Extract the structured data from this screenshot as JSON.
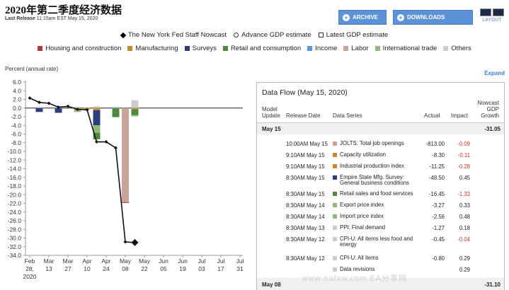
{
  "header": {
    "title": "2020年第二季度经济数据",
    "last_release_label": "Last Release",
    "last_release_value": "11:15am EST May 15, 2020"
  },
  "toolbar": {
    "archive_label": "ARCHIVE",
    "downloads_label": "DOWNLOADS",
    "layout_label": "LAYOUT"
  },
  "legend_top": {
    "nowcast": "The New York Fed Staff Nowcast",
    "advance": "Advance GDP estimate",
    "latest": "Latest GDP estimate"
  },
  "legend_categories": [
    {
      "label": "Housing and construction",
      "color": "#b23a3a"
    },
    {
      "label": "Manufacturing",
      "color": "#c98a2e"
    },
    {
      "label": "Surveys",
      "color": "#2e3d7c"
    },
    {
      "label": "Retail and consumption",
      "color": "#4e8a3e"
    },
    {
      "label": "Income",
      "color": "#5c98d6"
    },
    {
      "label": "Labor",
      "color": "#caa49a"
    },
    {
      "label": "International trade",
      "color": "#8fb87a"
    },
    {
      "label": "Others",
      "color": "#cccccc"
    }
  ],
  "expand_label": "Expand",
  "chart_data": {
    "type": "bar",
    "ylabel": "Percent (annual rate)",
    "ylim": [
      -34,
      6
    ],
    "yticks": [
      6.0,
      4.0,
      2.0,
      0.0,
      -2.0,
      -4.0,
      -6.0,
      -8.0,
      -10.0,
      -12.0,
      -14.0,
      -16.0,
      -18.0,
      -20.0,
      -22.0,
      -24.0,
      -26.0,
      -28.0,
      -30.0,
      -32.0,
      -34.0
    ],
    "categories": [
      [
        "Feb",
        "28,",
        "2020"
      ],
      [
        "Mar",
        "13"
      ],
      [
        "Mar",
        "27"
      ],
      [
        "Apr",
        "10"
      ],
      [
        "Apr",
        "24"
      ],
      [
        "May",
        "08"
      ],
      [
        "May",
        "22"
      ],
      [
        "Jun",
        "05"
      ],
      [
        "Jun",
        "19"
      ],
      [
        "Jul",
        "03"
      ],
      [
        "Jul",
        "17"
      ],
      [
        "Jul",
        "31"
      ]
    ],
    "nowcast": {
      "name": "The New York Fed Staff Nowcast",
      "points": [
        [
          0,
          2.3
        ],
        [
          0.5,
          1.3
        ],
        [
          1.0,
          1.1
        ],
        [
          1.5,
          0.2
        ],
        [
          2.0,
          0.4
        ],
        [
          2.5,
          -0.3
        ],
        [
          3.0,
          -0.4
        ],
        [
          3.5,
          -7.8
        ],
        [
          4.0,
          -7.8
        ],
        [
          4.5,
          -9.2
        ],
        [
          5.0,
          -30.9
        ],
        [
          5.5,
          -31.05
        ]
      ]
    },
    "contributions": [
      {
        "x": 0.5,
        "segments": [
          {
            "cat": 2,
            "v": -0.9
          },
          {
            "cat": 7,
            "v": 0.3
          }
        ]
      },
      {
        "x": 1.5,
        "segments": [
          {
            "cat": 2,
            "v": -1.1
          },
          {
            "cat": 7,
            "v": 0.2
          }
        ]
      },
      {
        "x": 2.5,
        "segments": [
          {
            "cat": 1,
            "v": -0.5
          },
          {
            "cat": 6,
            "v": -0.4
          },
          {
            "cat": 7,
            "v": 0.3
          }
        ]
      },
      {
        "x": 3.0,
        "segments": [
          {
            "cat": 1,
            "v": -0.3
          },
          {
            "cat": 7,
            "v": 0.2
          }
        ]
      },
      {
        "x": 3.5,
        "segments": [
          {
            "cat": 1,
            "v": -0.5
          },
          {
            "cat": 2,
            "v": -3.5
          },
          {
            "cat": 6,
            "v": -1.7
          },
          {
            "cat": 3,
            "v": -1.5
          },
          {
            "cat": 7,
            "v": 0.4
          }
        ]
      },
      {
        "x": 4.5,
        "segments": [
          {
            "cat": 3,
            "v": -2.1
          },
          {
            "cat": 7,
            "v": 0.3
          }
        ]
      },
      {
        "x": 5.0,
        "segments": [
          {
            "cat": 5,
            "v": -21.7
          },
          {
            "cat": 0,
            "v": -0.2
          }
        ]
      },
      {
        "x": 5.5,
        "segments": [
          {
            "cat": 1,
            "v": -0.3
          },
          {
            "cat": 3,
            "v": -1.3
          },
          {
            "cat": 6,
            "v": -0.3
          },
          {
            "cat": 7,
            "v": 1.8
          }
        ]
      }
    ]
  },
  "panel": {
    "title": "Data Flow (May 15, 2020)",
    "headers": {
      "model_update": "Model Update",
      "release_date": "Release Date",
      "data_series": "Data Series",
      "actual": "Actual",
      "impact": "Impact",
      "nowcast": "Nowcast GDP Growth"
    },
    "group1": {
      "date": "May 15",
      "nowcast": "-31.05"
    },
    "rows": [
      {
        "time": "10:00AM May 15",
        "color": "#caa49a",
        "series": "JOLTS: Total job openings",
        "actual": "-813.00",
        "impact": "-0.09",
        "neg": true
      },
      {
        "time": "9:10AM May 15",
        "color": "#c98a2e",
        "series": "Capacity utilization",
        "actual": "-8.30",
        "impact": "-0.11",
        "neg": true
      },
      {
        "time": "9:10AM May 15",
        "color": "#c98a2e",
        "series": "Industrial production index",
        "actual": "-11.25",
        "impact": "-0.28",
        "neg": true
      },
      {
        "time": "8:30AM May 15",
        "color": "#2e3d7c",
        "series": "Empire State Mfg. Survey: General business conditions",
        "actual": "-48.50",
        "impact": "0.45",
        "neg": false
      },
      {
        "time": "8:30AM May 15",
        "color": "#4e8a3e",
        "series": "Retail sales and food services",
        "actual": "-16.45",
        "impact": "-1.33",
        "neg": true
      },
      {
        "time": "8:30AM May 14",
        "color": "#8fb87a",
        "series": "Export price index",
        "actual": "-3.27",
        "impact": "0.33",
        "neg": false
      },
      {
        "time": "8:30AM May 14",
        "color": "#8fb87a",
        "series": "Import price index",
        "actual": "-2.56",
        "impact": "0.48",
        "neg": false
      },
      {
        "time": "8:30AM May 13",
        "color": "#cccccc",
        "series": "PPI: Final demand",
        "actual": "-1.27",
        "impact": "0.18",
        "neg": false
      },
      {
        "time": "8:30AM May 12",
        "color": "#cccccc",
        "series": "CPI-U: All items less food and energy",
        "actual": "-0.45",
        "impact": "-0.04",
        "neg": true
      },
      {
        "time": "8:30AM May 12",
        "color": "#cccccc",
        "series": "CPI-U: All items",
        "actual": "-0.80",
        "impact": "0.29",
        "neg": false
      },
      {
        "time": "",
        "color": "#cccccc",
        "series": "Data revisions",
        "actual": "",
        "impact": "0.29",
        "neg": false
      }
    ],
    "group2": {
      "date": "May 08",
      "nowcast": "-31.10"
    }
  },
  "watermark": "www.eafxw.com  EA分享网",
  "colors": {
    "accent": "#5b93d6",
    "negative": "#c0392b"
  }
}
